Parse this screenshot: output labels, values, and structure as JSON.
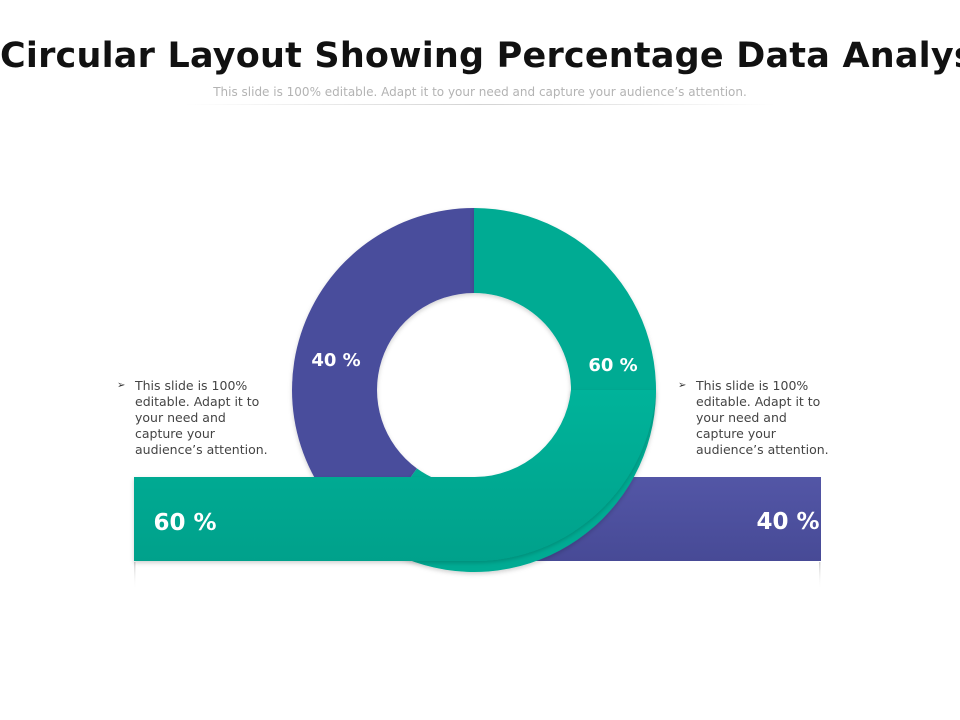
{
  "slide": {
    "title": "Circular Layout Showing Percentage Data Analysis",
    "subtitle": "This slide is 100% editable. Adapt it to your need and capture your audience’s attention."
  },
  "notes": {
    "left": {
      "bullet": "➢",
      "text": "This slide is 100% editable. Adapt it to your need and capture your audience’s attention."
    },
    "right": {
      "bullet": "➢",
      "text": "This slide is 100% editable. Adapt it to your need and capture your audience’s attention."
    }
  },
  "colors": {
    "teal": "#00ab93",
    "purple": "#4a4d9c"
  },
  "chart_data": {
    "type": "pie",
    "title": "Circular Layout Showing Percentage Data Analysis",
    "slices": [
      {
        "name": "teal",
        "value": 60,
        "label": "60 %"
      },
      {
        "name": "purple",
        "value": 40,
        "label": "40 %"
      }
    ],
    "bar_labels": {
      "left": "60 %",
      "right": "40 %"
    }
  }
}
